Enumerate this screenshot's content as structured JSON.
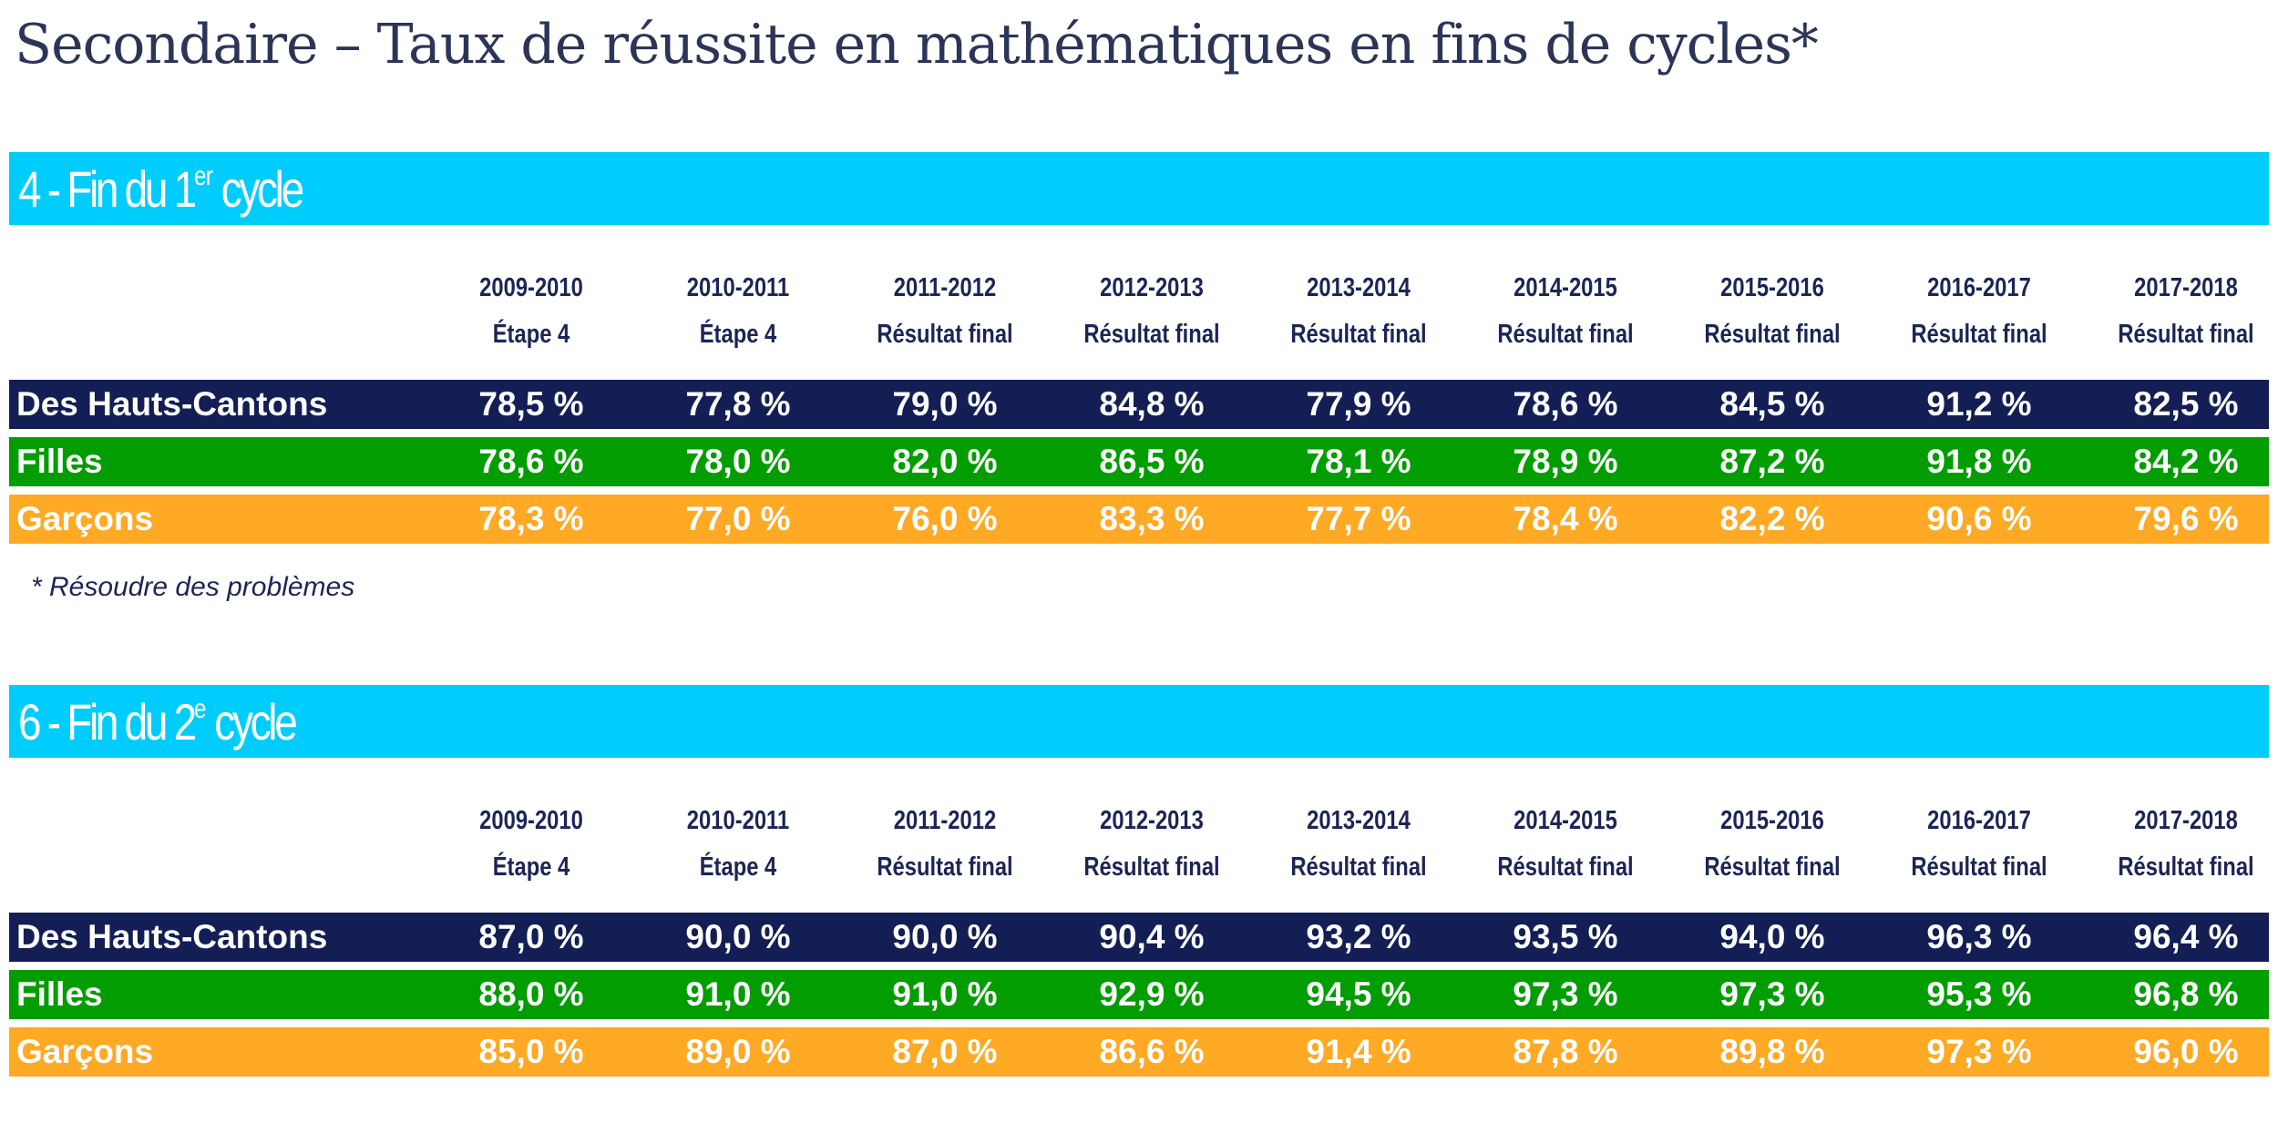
{
  "title": "Secondaire  – Taux de réussite en mathématiques en fins de cycles*",
  "footnote": "* Résoudre des problèmes",
  "colors": {
    "band": "#00cdfb",
    "total": "#131e55",
    "filles": "#029d01",
    "garcons": "#ffa925",
    "header_text": "#1b2556"
  },
  "sections": [
    {
      "title_prefix": "4 - Fin du 1",
      "title_sup": "er",
      "title_suffix": " cycle",
      "columns": [
        {
          "year": "2009-2010",
          "stage": "Étape 4"
        },
        {
          "year": "2010-2011",
          "stage": "Étape 4"
        },
        {
          "year": "2011-2012",
          "stage": "Résultat final"
        },
        {
          "year": "2012-2013",
          "stage": "Résultat final"
        },
        {
          "year": "2013-2014",
          "stage": "Résultat final"
        },
        {
          "year": "2014-2015",
          "stage": "Résultat final"
        },
        {
          "year": "2015-2016",
          "stage": "Résultat final"
        },
        {
          "year": "2016-2017",
          "stage": "Résultat final"
        },
        {
          "year": "2017-2018",
          "stage": "Résultat final"
        }
      ],
      "rows": [
        {
          "label": "Des Hauts-Cantons",
          "values": [
            "78,5 %",
            "77,8 %",
            "79,0 %",
            "84,8 %",
            "77,9 %",
            "78,6 %",
            "84,5 %",
            "91,2 %",
            "82,5 %"
          ]
        },
        {
          "label": "Filles",
          "values": [
            "78,6 %",
            "78,0 %",
            "82,0 %",
            "86,5 %",
            "78,1 %",
            "78,9 %",
            "87,2 %",
            "91,8 %",
            "84,2 %"
          ]
        },
        {
          "label": "Garçons",
          "values": [
            "78,3 %",
            "77,0 %",
            "76,0 %",
            "83,3 %",
            "77,7 %",
            "78,4 %",
            "82,2 %",
            "90,6 %",
            "79,6 %"
          ]
        }
      ]
    },
    {
      "title_prefix": "6 - Fin du 2",
      "title_sup": "e",
      "title_suffix": " cycle",
      "columns": [
        {
          "year": "2009-2010",
          "stage": "Étape 4"
        },
        {
          "year": "2010-2011",
          "stage": "Étape 4"
        },
        {
          "year": "2011-2012",
          "stage": "Résultat final"
        },
        {
          "year": "2012-2013",
          "stage": "Résultat final"
        },
        {
          "year": "2013-2014",
          "stage": "Résultat final"
        },
        {
          "year": "2014-2015",
          "stage": "Résultat final"
        },
        {
          "year": "2015-2016",
          "stage": "Résultat final"
        },
        {
          "year": "2016-2017",
          "stage": "Résultat final"
        },
        {
          "year": "2017-2018",
          "stage": "Résultat final"
        }
      ],
      "rows": [
        {
          "label": "Des Hauts-Cantons",
          "values": [
            "87,0 %",
            "90,0 %",
            "90,0 %",
            "90,4 %",
            "93,2 %",
            "93,5 %",
            "94,0 %",
            "96,3 %",
            "96,4 %"
          ]
        },
        {
          "label": "Filles",
          "values": [
            "88,0 %",
            "91,0 %",
            "91,0 %",
            "92,9 %",
            "94,5 %",
            "97,3 %",
            "97,3 %",
            "95,3 %",
            "96,8 %"
          ]
        },
        {
          "label": "Garçons",
          "values": [
            "85,0 %",
            "89,0 %",
            "87,0 %",
            "86,6 %",
            "91,4 %",
            "87,8 %",
            "89,8 %",
            "97,3 %",
            "96,0 %"
          ]
        }
      ]
    }
  ]
}
